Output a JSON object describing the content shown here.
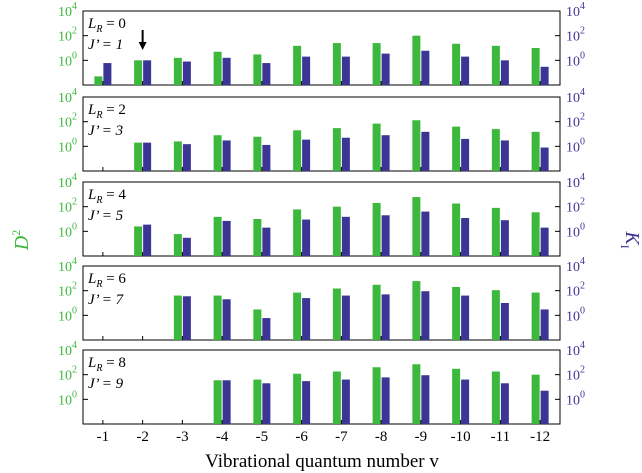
{
  "colors": {
    "green": "#3cb93c",
    "blue": "#3b3596",
    "frame": "#000000"
  },
  "figure": {
    "ylabel_left": "D",
    "ylabel_left_sup": "2",
    "ylabel_right": "K",
    "ylabel_right_sub": "I",
    "xlabel": "Vibrational quantum number v"
  },
  "chart_data": {
    "type": "bar",
    "scale": "log10",
    "ylim": [
      0.01,
      10000
    ],
    "yticks": [
      "10",
      "10",
      "10"
    ],
    "ytick_exponents": [
      "0",
      "2",
      "4"
    ],
    "categories": [
      "-1",
      "-2",
      "-3",
      "-4",
      "-5",
      "-6",
      "-7",
      "-8",
      "-9",
      "-10",
      "-11",
      "-12"
    ],
    "series_names": [
      "D²",
      "K_I"
    ],
    "grid": false,
    "annotation": "downward arrow above v = -2 in top panel",
    "panels": [
      {
        "label_l": "L",
        "label_l_sub": "R",
        "label_l_val": " = 0",
        "label_j": "J’ = 1",
        "series": [
          {
            "name": "D²",
            "values": [
              0.05,
              1.0,
              1.6,
              5,
              3,
              15,
              25,
              25,
              100,
              22,
              15,
              10
            ]
          },
          {
            "name": "K_I",
            "values": [
              0.6,
              1.0,
              0.8,
              1.6,
              0.6,
              2,
              2,
              3.5,
              6,
              2,
              1,
              0.3
            ]
          }
        ]
      },
      {
        "label_l": "L",
        "label_l_sub": "R",
        "label_l_val": " = 2",
        "label_j": "J’ = 3",
        "series": [
          {
            "name": "D²",
            "values": [
              null,
              2,
              2.5,
              8,
              6,
              20,
              30,
              70,
              130,
              40,
              25,
              15
            ]
          },
          {
            "name": "K_I",
            "values": [
              null,
              2,
              1.5,
              3,
              1.3,
              3.5,
              5,
              8,
              15,
              4,
              3,
              0.8
            ]
          }
        ]
      },
      {
        "label_l": "L",
        "label_l_sub": "R",
        "label_l_val": " = 4",
        "label_j": "J’ = 5",
        "series": [
          {
            "name": "D²",
            "values": [
              null,
              2.5,
              0.6,
              15,
              10,
              60,
              100,
              200,
              600,
              180,
              80,
              35
            ]
          },
          {
            "name": "K_I",
            "values": [
              null,
              3.5,
              0.3,
              7,
              2,
              9,
              15,
              20,
              40,
              12,
              8,
              2
            ]
          }
        ]
      },
      {
        "label_l": "L",
        "label_l_sub": "R",
        "label_l_val": " = 6",
        "label_j": "J’ = 7",
        "series": [
          {
            "name": "D²",
            "values": [
              null,
              null,
              40,
              40,
              3,
              70,
              150,
              300,
              600,
              200,
              110,
              70
            ]
          },
          {
            "name": "K_I",
            "values": [
              null,
              null,
              35,
              20,
              0.6,
              25,
              40,
              50,
              90,
              40,
              10,
              3
            ]
          }
        ]
      },
      {
        "label_l": "L",
        "label_l_sub": "R",
        "label_l_val": " = 8",
        "label_j": "J’ = 9",
        "series": [
          {
            "name": "D²",
            "values": [
              null,
              null,
              null,
              35,
              40,
              120,
              180,
              400,
              700,
              300,
              180,
              100
            ]
          },
          {
            "name": "K_I",
            "values": [
              null,
              null,
              null,
              35,
              20,
              30,
              40,
              60,
              90,
              40,
              20,
              5
            ]
          }
        ]
      }
    ]
  }
}
